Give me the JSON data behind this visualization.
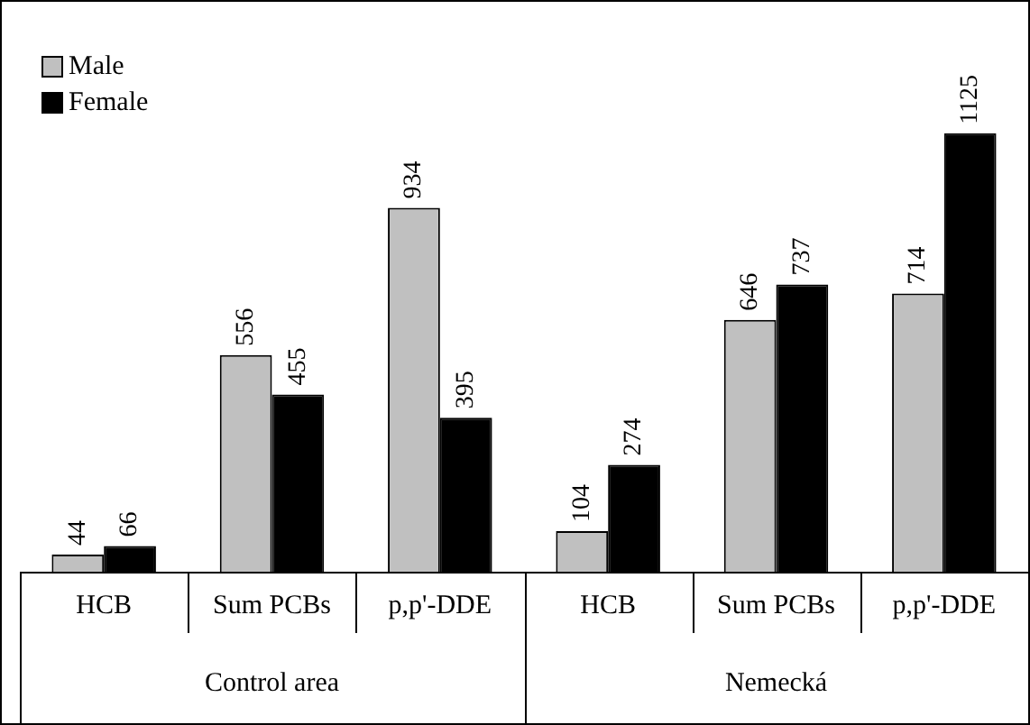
{
  "chart_data": {
    "type": "bar",
    "categories": [
      "HCB",
      "Sum PCBs",
      "p,p'-DDE",
      "HCB",
      "Sum PCBs",
      "p,p'-DDE"
    ],
    "series": [
      {
        "name": "Male",
        "color": "#c0c0c0",
        "values": [
          44,
          556,
          934,
          104,
          646,
          714
        ]
      },
      {
        "name": "Female",
        "color": "#000000",
        "values": [
          66,
          455,
          395,
          274,
          737,
          1125
        ]
      }
    ],
    "annotations": [
      "Control area",
      "Nemecká"
    ],
    "data_labels": true,
    "legend": "top left",
    "grid": false
  }
}
